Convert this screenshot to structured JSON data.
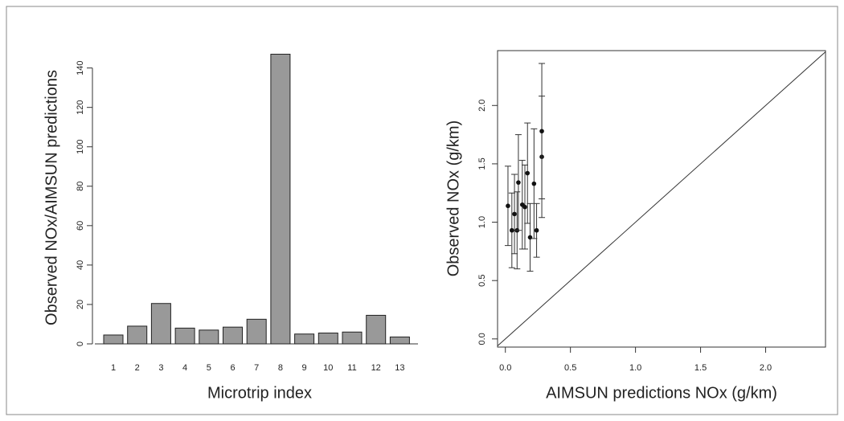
{
  "chart_data": [
    {
      "type": "bar",
      "x_label": "Microtrip index",
      "y_label": "Observed NOx/AIMSUN predictions",
      "categories": [
        "1",
        "2",
        "3",
        "4",
        "5",
        "6",
        "7",
        "8",
        "9",
        "10",
        "11",
        "12",
        "13"
      ],
      "values": [
        4.5,
        9,
        20.5,
        8,
        7,
        8.5,
        12.5,
        147,
        5,
        5.5,
        6,
        14.5,
        3.5
      ],
      "color": "#999999",
      "ylim": [
        0,
        148
      ],
      "yticks": [
        0,
        20,
        40,
        60,
        80,
        100,
        120,
        140
      ]
    },
    {
      "type": "scatter",
      "x_label": "AIMSUN predictions NOx (g/km)",
      "y_label": "Observed NOx (g/km)",
      "x": [
        0.02,
        0.05,
        0.07,
        0.09,
        0.1,
        0.13,
        0.15,
        0.17,
        0.19,
        0.22,
        0.24,
        0.28,
        0.28
      ],
      "values": [
        1.14,
        0.93,
        1.07,
        0.93,
        1.34,
        1.15,
        1.13,
        1.42,
        0.87,
        1.33,
        0.93,
        1.56,
        1.78
      ],
      "errors": [
        0.34,
        0.32,
        0.34,
        0.33,
        0.41,
        0.38,
        0.36,
        0.43,
        0.29,
        0.47,
        0.23,
        0.52,
        0.58
      ],
      "color": "#111111",
      "identity_line": true,
      "xlim": [
        -0.06,
        2.46
      ],
      "ylim": [
        -0.07,
        2.47
      ],
      "xticks": [
        {
          "value": 0,
          "label": "0.0"
        },
        0.5,
        {
          "value": 1,
          "label": "1.0"
        },
        1.5,
        {
          "value": 2,
          "label": "2.0"
        }
      ],
      "yticks": [
        {
          "value": 0,
          "label": "0.0"
        },
        0.5,
        {
          "value": 1,
          "label": "1.0"
        },
        1.5,
        {
          "value": 2,
          "label": "2.0"
        }
      ]
    }
  ]
}
